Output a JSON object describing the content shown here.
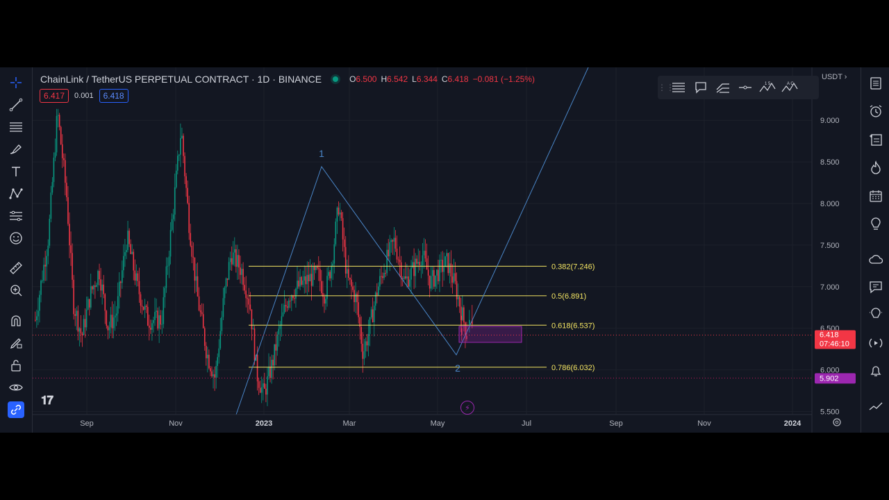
{
  "header": {
    "symbol": "ChainLink / TetherUS PERPETUAL CONTRACT · 1D · BINANCE",
    "ohlc": [
      {
        "label": "O",
        "value": "6.500"
      },
      {
        "label": "H",
        "value": "6.542"
      },
      {
        "label": "L",
        "value": "6.344"
      },
      {
        "label": "C",
        "value": "6.418"
      }
    ],
    "change": "−0.081 (−1.25%)"
  },
  "price_row": {
    "sell": "6.417",
    "spread": "0.001",
    "buy": "6.418"
  },
  "currency": "USDT",
  "colors": {
    "up": "#089981",
    "down": "#f23645",
    "fib": "#f5e663",
    "wave": "#4a86c8",
    "zone": "#9c27b0",
    "background": "#131722"
  },
  "chart_data": {
    "type": "candlestick",
    "ylim": [
      5.5,
      9.35
    ],
    "y_ticks": [
      "9.000",
      "8.500",
      "8.000",
      "7.500",
      "7.000",
      "6.500",
      "6.000",
      "5.500"
    ],
    "x_ticks": [
      "Sep",
      "Nov",
      "2023",
      "Mar",
      "May",
      "Jul",
      "Sep",
      "Nov",
      "2024"
    ],
    "fib_levels": [
      {
        "label": "0.382(7.246)",
        "value": 7.246
      },
      {
        "label": "0.5(6.891)",
        "value": 6.891
      },
      {
        "label": "0.618(6.537)",
        "value": 6.537
      },
      {
        "label": "0.786(6.032)",
        "value": 6.032
      }
    ],
    "wave_labels": [
      "1",
      "2"
    ],
    "last_price": {
      "value": "6.418",
      "countdown": "07:46:10"
    },
    "marked_level": {
      "value": "5.902"
    }
  }
}
